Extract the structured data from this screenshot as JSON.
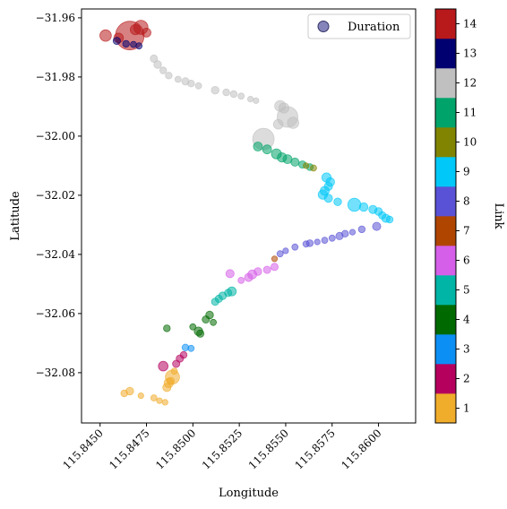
{
  "chart_data": {
    "type": "scatter",
    "title": "",
    "xlabel": "Longitude",
    "ylabel": "Latitude",
    "xlim": [
      115.844,
      115.862
    ],
    "ylim": [
      -32.097,
      -31.957
    ],
    "xticks": [
      115.845,
      115.8475,
      115.85,
      115.8525,
      115.855,
      115.8575,
      115.86
    ],
    "xtick_labels": [
      "115.8450",
      "115.8475",
      "115.8500",
      "115.8525",
      "115.8550",
      "115.8575",
      "115.8600"
    ],
    "yticks": [
      -31.96,
      -31.98,
      -32.0,
      -32.02,
      -32.04,
      -32.06,
      -32.08
    ],
    "ytick_labels": [
      "−31.96",
      "−31.98",
      "−32.00",
      "−32.02",
      "−32.04",
      "−32.06",
      "−32.08"
    ],
    "grid": false,
    "legend": {
      "position": "top-right",
      "entries": [
        "Duration"
      ],
      "marker_color": "#6666aa"
    },
    "colorbar": {
      "label": "Link",
      "min": 0.5,
      "max": 14.5,
      "ticks": [
        1,
        2,
        3,
        4,
        5,
        6,
        7,
        8,
        9,
        10,
        11,
        12,
        13,
        14
      ],
      "tick_labels": [
        "1",
        "2",
        "3",
        "4",
        "5",
        "6",
        "7",
        "8",
        "9",
        "10",
        "11",
        "12",
        "13",
        "14"
      ],
      "colors": [
        "#f0ac2b",
        "#b5005e",
        "#0b8ff5",
        "#006a00",
        "#00b5a5",
        "#d55fe8",
        "#b04500",
        "#5a52d6",
        "#00c8f8",
        "#818400",
        "#00a46a",
        "#c0c0c0",
        "#000070",
        "#b8191b"
      ]
    },
    "points": [
      [
        115.8463,
        -32.087,
        1,
        0.5
      ],
      [
        115.8466,
        -32.0862,
        1,
        0.7
      ],
      [
        115.8472,
        -32.0878,
        1,
        0.3
      ],
      [
        115.8479,
        -32.0885,
        1,
        0.4
      ],
      [
        115.8482,
        -32.0895,
        1,
        0.3
      ],
      [
        115.8485,
        -32.09,
        1,
        0.3
      ],
      [
        115.8486,
        -32.085,
        1,
        0.8
      ],
      [
        115.8488,
        -32.0828,
        1,
        0.6
      ],
      [
        115.8489,
        -32.0815,
        1,
        3.0
      ],
      [
        115.849,
        -32.0795,
        1,
        0.4
      ],
      [
        115.8487,
        -32.0835,
        1,
        1.1
      ],
      [
        115.8484,
        -32.0778,
        2,
        1.2
      ],
      [
        115.8491,
        -32.077,
        2,
        0.6
      ],
      [
        115.8493,
        -32.0752,
        2,
        0.6
      ],
      [
        115.8495,
        -32.074,
        2,
        0.5
      ],
      [
        115.8496,
        -32.0715,
        3,
        0.5
      ],
      [
        115.8499,
        -32.0718,
        3,
        0.4
      ],
      [
        115.8486,
        -32.065,
        4,
        0.5
      ],
      [
        115.85,
        -32.0645,
        4,
        0.4
      ],
      [
        115.8503,
        -32.066,
        4,
        0.9
      ],
      [
        115.8504,
        -32.0668,
        4,
        0.6
      ],
      [
        115.8507,
        -32.062,
        4,
        0.6
      ],
      [
        115.8509,
        -32.0605,
        4,
        0.7
      ],
      [
        115.8511,
        -32.063,
        4,
        0.4
      ],
      [
        115.8512,
        -32.056,
        5,
        0.6
      ],
      [
        115.8514,
        -32.055,
        5,
        0.6
      ],
      [
        115.8516,
        -32.054,
        5,
        0.7
      ],
      [
        115.8519,
        -32.053,
        5,
        0.6
      ],
      [
        115.8521,
        -32.0525,
        5,
        1.0
      ],
      [
        115.852,
        -32.0465,
        6,
        0.8
      ],
      [
        115.8526,
        -32.0488,
        6,
        0.4
      ],
      [
        115.853,
        -32.0478,
        6,
        0.8
      ],
      [
        115.8532,
        -32.0468,
        6,
        1.0
      ],
      [
        115.8535,
        -32.0458,
        6,
        0.7
      ],
      [
        115.854,
        -32.0452,
        6,
        0.6
      ],
      [
        115.8544,
        -32.0442,
        6,
        0.6
      ],
      [
        115.8544,
        -32.0415,
        7,
        0.3
      ],
      [
        115.8547,
        -32.0398,
        8,
        0.4
      ],
      [
        115.855,
        -32.0388,
        8,
        0.3
      ],
      [
        115.8555,
        -32.0375,
        8,
        0.4
      ],
      [
        115.8561,
        -32.0365,
        8,
        0.4
      ],
      [
        115.8563,
        -32.0362,
        8,
        0.5
      ],
      [
        115.8567,
        -32.0358,
        8,
        0.3
      ],
      [
        115.8571,
        -32.0352,
        8,
        0.4
      ],
      [
        115.8575,
        -32.0345,
        8,
        0.4
      ],
      [
        115.8579,
        -32.0338,
        8,
        0.6
      ],
      [
        115.8582,
        -32.033,
        8,
        0.5
      ],
      [
        115.8586,
        -32.0325,
        8,
        0.3
      ],
      [
        115.8591,
        -32.0315,
        8,
        0.5
      ],
      [
        115.8599,
        -32.0305,
        8,
        0.8
      ],
      [
        115.8572,
        -32.014,
        9,
        1.1
      ],
      [
        115.8574,
        -32.0155,
        9,
        0.9
      ],
      [
        115.8573,
        -32.017,
        9,
        0.8
      ],
      [
        115.8571,
        -32.0185,
        9,
        1.0
      ],
      [
        115.857,
        -32.0198,
        9,
        1.1
      ],
      [
        115.8573,
        -32.021,
        9,
        0.8
      ],
      [
        115.8578,
        -32.0222,
        9,
        0.7
      ],
      [
        115.8587,
        -32.0232,
        9,
        2.5
      ],
      [
        115.8592,
        -32.024,
        9,
        0.9
      ],
      [
        115.8597,
        -32.0248,
        9,
        0.8
      ],
      [
        115.86,
        -32.0255,
        9,
        0.7
      ],
      [
        115.8602,
        -32.0268,
        9,
        0.6
      ],
      [
        115.8604,
        -32.0278,
        9,
        0.8
      ],
      [
        115.8606,
        -32.0282,
        9,
        0.5
      ],
      [
        115.8561,
        -32.01,
        10,
        0.3
      ],
      [
        115.8565,
        -32.0108,
        10,
        0.4
      ],
      [
        115.8535,
        -32.0035,
        11,
        1.0
      ],
      [
        115.854,
        -32.0045,
        11,
        1.0
      ],
      [
        115.8545,
        -32.006,
        11,
        1.3
      ],
      [
        115.8548,
        -32.0072,
        11,
        1.1
      ],
      [
        115.8551,
        -32.0078,
        11,
        1.0
      ],
      [
        115.8555,
        -32.0088,
        11,
        0.8
      ],
      [
        115.8559,
        -32.0096,
        11,
        0.6
      ],
      [
        115.8563,
        -32.0105,
        11,
        0.5
      ],
      [
        115.8479,
        -31.9738,
        12,
        0.6
      ],
      [
        115.8481,
        -31.9758,
        12,
        0.7
      ],
      [
        115.8484,
        -31.9778,
        12,
        0.5
      ],
      [
        115.8487,
        -31.9795,
        12,
        0.5
      ],
      [
        115.8492,
        -31.9808,
        12,
        0.4
      ],
      [
        115.8496,
        -31.9815,
        12,
        0.6
      ],
      [
        115.8499,
        -31.9822,
        12,
        0.5
      ],
      [
        115.8503,
        -31.983,
        12,
        0.4
      ],
      [
        115.8512,
        -31.9845,
        12,
        0.7
      ],
      [
        115.8518,
        -31.9852,
        12,
        0.5
      ],
      [
        115.8522,
        -31.9858,
        12,
        0.5
      ],
      [
        115.8526,
        -31.9865,
        12,
        0.4
      ],
      [
        115.8531,
        -31.9875,
        12,
        0.3
      ],
      [
        115.8534,
        -31.988,
        12,
        0.3
      ],
      [
        115.8538,
        -32.001,
        12,
        7.5
      ],
      [
        115.8547,
        -31.9898,
        12,
        1.6
      ],
      [
        115.8551,
        -31.9935,
        12,
        7.0
      ],
      [
        115.8554,
        -31.9955,
        12,
        1.8
      ],
      [
        115.8546,
        -31.996,
        12,
        1.2
      ],
      [
        115.8549,
        -31.9905,
        12,
        1.4
      ],
      [
        115.8459,
        -31.9678,
        13,
        0.6
      ],
      [
        115.8464,
        -31.9688,
        13,
        0.5
      ],
      [
        115.8468,
        -31.969,
        13,
        0.4
      ],
      [
        115.8471,
        -31.9695,
        13,
        0.4
      ],
      [
        115.8453,
        -31.966,
        14,
        1.8
      ],
      [
        115.846,
        -31.9668,
        14,
        1.2
      ],
      [
        115.8466,
        -31.966,
        14,
        14.0
      ],
      [
        115.8469,
        -31.964,
        14,
        1.4
      ],
      [
        115.8472,
        -31.9632,
        14,
        3.0
      ],
      [
        115.8475,
        -31.965,
        14,
        1.0
      ]
    ]
  }
}
